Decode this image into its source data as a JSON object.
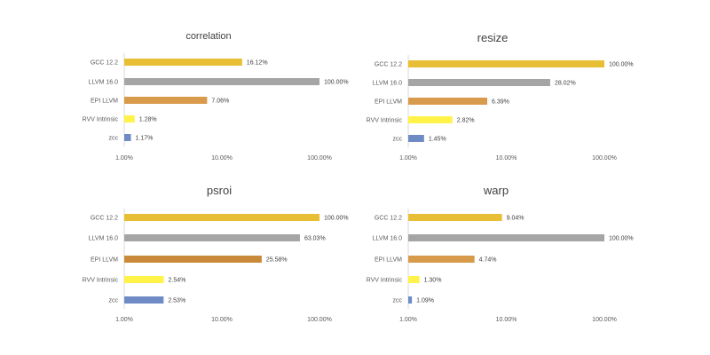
{
  "chart_data": [
    {
      "type": "bar",
      "orientation": "horizontal",
      "title": "correlation",
      "x_scale": "log",
      "xlim": [
        "1.00%",
        "100.00%"
      ],
      "x_ticks": [
        "1.00%",
        "10.00%",
        "100.00%"
      ],
      "grid": false,
      "categories": [
        "GCC 12.2",
        "LLVM 16.0",
        "EPI LLVM",
        "RVV Intrinsic",
        "zcc"
      ],
      "values": [
        16.12,
        100.0,
        7.06,
        1.28,
        1.17
      ],
      "value_labels": [
        "16.12%",
        "100.00%",
        "7.06%",
        "1.28%",
        "1.17%"
      ],
      "colors": [
        "#E8BE35",
        "#A5A5A5",
        "#D89B4C",
        "#FFF34A",
        "#6E8BC6"
      ]
    },
    {
      "type": "bar",
      "orientation": "horizontal",
      "title": "resize",
      "x_scale": "log",
      "xlim": [
        "1.00%",
        "100.00%"
      ],
      "x_ticks": [
        "1.00%",
        "10.00%",
        "100.00%"
      ],
      "grid": false,
      "categories": [
        "GCC 12.2",
        "LLVM 16.0",
        "EPI LLVM",
        "RVV Intrinsic",
        "zcc"
      ],
      "values": [
        100.0,
        28.02,
        6.39,
        2.82,
        1.45
      ],
      "value_labels": [
        "100.00%",
        "28.02%",
        "6.39%",
        "2.82%",
        "1.45%"
      ],
      "colors": [
        "#E8BE35",
        "#A5A5A5",
        "#D89B4C",
        "#FFF34A",
        "#6E8BC6"
      ]
    },
    {
      "type": "bar",
      "orientation": "horizontal",
      "title": "psroi",
      "x_scale": "log",
      "xlim": [
        "1.00%",
        "100.00%"
      ],
      "x_ticks": [
        "1.00%",
        "10.00%",
        "100.00%"
      ],
      "grid": false,
      "categories": [
        "GCC 12.2",
        "LLVM 16.0",
        "EPI LLVM",
        "RVV Intrinsic",
        "zcc"
      ],
      "values": [
        100.0,
        63.03,
        25.58,
        2.54,
        2.53
      ],
      "value_labels": [
        "100.00%",
        "63.03%",
        "25.58%",
        "2.54%",
        "2.53%"
      ],
      "colors": [
        "#E8BE35",
        "#A5A5A5",
        "#C98A3A",
        "#FFF34A",
        "#6E8BC6"
      ]
    },
    {
      "type": "bar",
      "orientation": "horizontal",
      "title": "warp",
      "x_scale": "log",
      "xlim": [
        "1.00%",
        "100.00%"
      ],
      "x_ticks": [
        "1.00%",
        "10.00%",
        "100.00%"
      ],
      "grid": false,
      "categories": [
        "GCC 12.2",
        "LLVM 16.0",
        "EPI LLVM",
        "RVV Intrinsic",
        "zcc"
      ],
      "values": [
        9.04,
        100.0,
        4.74,
        1.3,
        1.09
      ],
      "value_labels": [
        "9.04%",
        "100.00%",
        "4.74%",
        "1.30%",
        "1.09%"
      ],
      "colors": [
        "#E8BE35",
        "#A5A5A5",
        "#D89B4C",
        "#FFF34A",
        "#6E8BC6"
      ]
    }
  ]
}
